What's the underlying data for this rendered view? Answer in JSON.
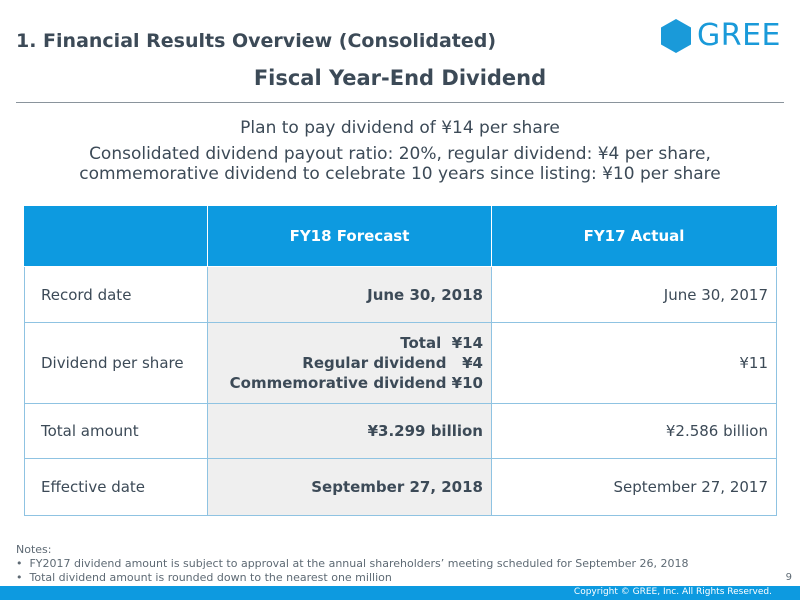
{
  "header": {
    "section_title": "1. Financial Results Overview (Consolidated)",
    "logo_text": "GREE",
    "brand_color": "#1a9ad9"
  },
  "slide": {
    "title": "Fiscal Year-End Dividend",
    "lead_1": "Plan to pay dividend of ¥14 per share",
    "lead_2": "Consolidated dividend payout ratio: 20%, regular dividend: ¥4 per share,",
    "lead_3": "commemorative dividend to celebrate 10 years since listing: ¥10 per share"
  },
  "table": {
    "headers": [
      "",
      "FY18 Forecast",
      "FY17 Actual"
    ],
    "rows": [
      {
        "label": "Record date",
        "forecast": "June 30, 2018",
        "actual": "June 30, 2017"
      },
      {
        "label": "Dividend per share",
        "forecast_lines": [
          "Total  ¥14",
          "Regular dividend   ¥4",
          "Commemorative dividend ¥10"
        ],
        "actual": "¥11"
      },
      {
        "label": "Total amount",
        "forecast": "¥3.299 billion",
        "actual": "¥2.586 billion"
      },
      {
        "label": "Effective date",
        "forecast": "September 27, 2018",
        "actual": "September 27, 2017"
      }
    ],
    "header_color": "#0d9ae0"
  },
  "notes": {
    "title": "Notes:",
    "items": [
      "FY2017 dividend amount is subject to approval at the annual shareholders’ meeting scheduled for September 26, 2018",
      "Total dividend amount is rounded down to the nearest one million"
    ]
  },
  "footer": {
    "page_number": "9",
    "copyright": "Copyright © GREE, Inc. All Rights Reserved."
  }
}
